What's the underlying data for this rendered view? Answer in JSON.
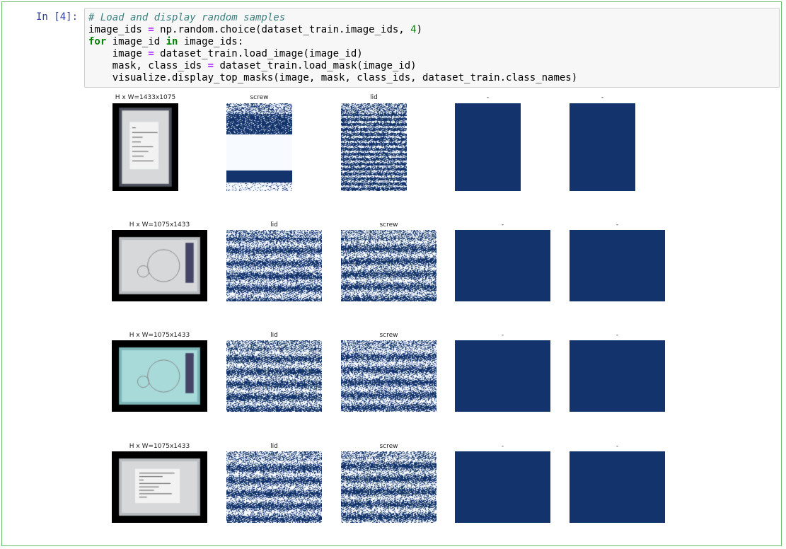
{
  "cell": {
    "prompt": "In [4]:",
    "code_lines": [
      "# Load and display random samples",
      "image_ids = np.random.choice(dataset_train.image_ids, 4)",
      "for image_id in image_ids:",
      "    image = dataset_train.load_image(image_id)",
      "    mask, class_ids = dataset_train.load_mask(image_id)",
      "    visualize.display_top_masks(image, mask, class_ids, dataset_train.class_names)"
    ]
  },
  "colors": {
    "mask_fg": "#12336b",
    "mask_bg": "#f7fbff",
    "cell_border": "#66bb6a",
    "prompt": "#303f9f"
  },
  "output": {
    "rows": [
      {
        "titles": [
          "H x W=1433x1075",
          "screw",
          "lid",
          "-",
          "-"
        ]
      },
      {
        "titles": [
          "H x W=1075x1433",
          "lid",
          "screw",
          "-",
          "-"
        ]
      },
      {
        "titles": [
          "H x W=1075x1433",
          "lid",
          "screw",
          "-",
          "-"
        ]
      },
      {
        "titles": [
          "H x W=1075x1433",
          "lid",
          "screw",
          "-",
          "-"
        ]
      }
    ]
  }
}
